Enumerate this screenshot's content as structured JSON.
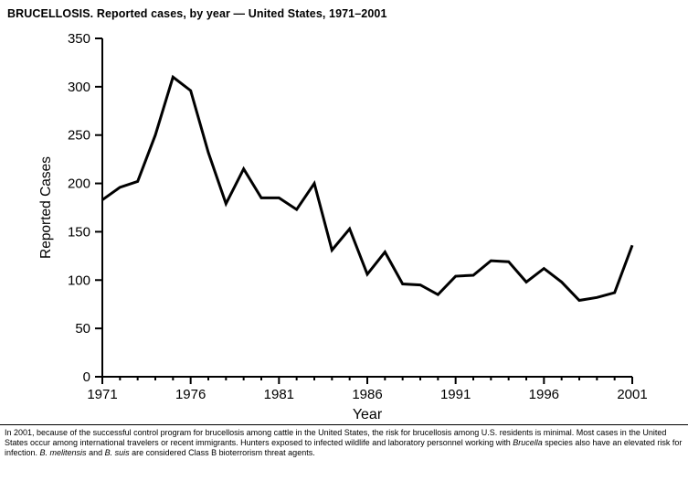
{
  "header": {
    "title": "BRUCELLOSIS. Reported cases, by year — United States, 1971–2001"
  },
  "chart_data": {
    "type": "line",
    "title": "BRUCELLOSIS. Reported cases, by year — United States, 1971–2001",
    "xlabel": "Year",
    "ylabel": "Reported Cases",
    "xlim": [
      1971,
      2001
    ],
    "ylim": [
      0,
      350
    ],
    "xticks": [
      1971,
      1976,
      1981,
      1986,
      1991,
      1996,
      2001
    ],
    "yticks": [
      0,
      50,
      100,
      150,
      200,
      250,
      300,
      350
    ],
    "grid": false,
    "legend": "none",
    "line_color": "#000000",
    "x": [
      1971,
      1972,
      1973,
      1974,
      1975,
      1976,
      1977,
      1978,
      1979,
      1980,
      1981,
      1982,
      1983,
      1984,
      1985,
      1986,
      1987,
      1988,
      1989,
      1990,
      1991,
      1992,
      1993,
      1994,
      1995,
      1996,
      1997,
      1998,
      1999,
      2000,
      2001
    ],
    "values": [
      183,
      196,
      202,
      250,
      310,
      296,
      232,
      179,
      215,
      185,
      185,
      173,
      200,
      131,
      153,
      106,
      129,
      96,
      95,
      85,
      104,
      105,
      120,
      119,
      98,
      112,
      98,
      79,
      82,
      87,
      136
    ]
  },
  "footnote": {
    "segments": [
      {
        "text": "In 2001, because of the successful control program for brucellosis among cattle in the United States, the risk for brucellosis among U.S. residents is minimal. Most cases in the United States occur among international travelers or recent immigrants. Hunters exposed to infected wildlife and laboratory personnel working with ",
        "italic": false
      },
      {
        "text": "Brucella",
        "italic": true
      },
      {
        "text": " species also have an elevated risk for infection. ",
        "italic": false
      },
      {
        "text": "B. melitensis",
        "italic": true
      },
      {
        "text": " and ",
        "italic": false
      },
      {
        "text": "B. suis",
        "italic": true
      },
      {
        "text": " are considered Class B bioterrorism threat agents.",
        "italic": false
      }
    ]
  }
}
